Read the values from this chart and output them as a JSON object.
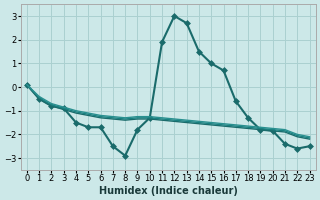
{
  "xlabel": "Humidex (Indice chaleur)",
  "ylabel": "",
  "xlim": [
    -0.5,
    23.5
  ],
  "ylim": [
    -3.5,
    3.5
  ],
  "xticks": [
    0,
    1,
    2,
    3,
    4,
    5,
    6,
    7,
    8,
    9,
    10,
    11,
    12,
    13,
    14,
    15,
    16,
    17,
    18,
    19,
    20,
    21,
    22,
    23
  ],
  "yticks": [
    -3,
    -2,
    -1,
    0,
    1,
    2,
    3
  ],
  "bg_color": "#cce8e8",
  "grid_color": "#aad0d0",
  "series": [
    {
      "x": [
        0,
        1,
        2,
        3,
        4,
        5,
        6,
        7,
        8,
        9,
        10,
        11,
        12,
        13,
        14,
        15,
        16,
        17,
        18,
        19,
        20,
        21,
        22,
        23
      ],
      "y": [
        0.1,
        -0.5,
        -0.8,
        -0.9,
        -1.5,
        -1.7,
        -1.7,
        -2.5,
        -2.9,
        -1.8,
        -1.3,
        1.9,
        3.0,
        2.7,
        1.5,
        1.0,
        0.7,
        -0.6,
        -1.3,
        -1.8,
        -1.85,
        -2.4,
        -2.6,
        -2.5
      ],
      "marker": "D",
      "markersize": 3,
      "linewidth": 1.5,
      "color": "#1a6b6b"
    },
    {
      "x": [
        0,
        1,
        2,
        3,
        4,
        5,
        6,
        7,
        8,
        9,
        10,
        11,
        12,
        13,
        14,
        15,
        16,
        17,
        18,
        19,
        20,
        21,
        22,
        23
      ],
      "y": [
        0.1,
        -0.5,
        -0.8,
        -0.95,
        -1.1,
        -1.2,
        -1.3,
        -1.35,
        -1.4,
        -1.35,
        -1.35,
        -1.4,
        -1.45,
        -1.5,
        -1.55,
        -1.6,
        -1.65,
        -1.7,
        -1.75,
        -1.8,
        -1.85,
        -1.9,
        -2.1,
        -2.2
      ],
      "marker": null,
      "markersize": 0,
      "linewidth": 1.0,
      "color": "#1a6b6b"
    },
    {
      "x": [
        0,
        1,
        2,
        3,
        4,
        5,
        6,
        7,
        8,
        9,
        10,
        11,
        12,
        13,
        14,
        15,
        16,
        17,
        18,
        19,
        20,
        21,
        22,
        23
      ],
      "y": [
        0.1,
        -0.45,
        -0.75,
        -0.9,
        -1.05,
        -1.15,
        -1.25,
        -1.3,
        -1.35,
        -1.3,
        -1.3,
        -1.35,
        -1.4,
        -1.45,
        -1.5,
        -1.55,
        -1.6,
        -1.65,
        -1.7,
        -1.75,
        -1.8,
        -1.85,
        -2.05,
        -2.15
      ],
      "marker": null,
      "markersize": 0,
      "linewidth": 1.0,
      "color": "#1a8080"
    },
    {
      "x": [
        0,
        1,
        2,
        3,
        4,
        5,
        6,
        7,
        8,
        9,
        10,
        11,
        12,
        13,
        14,
        15,
        16,
        17,
        18,
        19,
        20,
        21,
        22,
        23
      ],
      "y": [
        0.1,
        -0.4,
        -0.7,
        -0.85,
        -1.0,
        -1.1,
        -1.2,
        -1.25,
        -1.3,
        -1.25,
        -1.25,
        -1.3,
        -1.35,
        -1.4,
        -1.45,
        -1.5,
        -1.55,
        -1.6,
        -1.65,
        -1.7,
        -1.75,
        -1.8,
        -2.0,
        -2.1
      ],
      "marker": null,
      "markersize": 0,
      "linewidth": 1.0,
      "color": "#2a9090"
    }
  ]
}
